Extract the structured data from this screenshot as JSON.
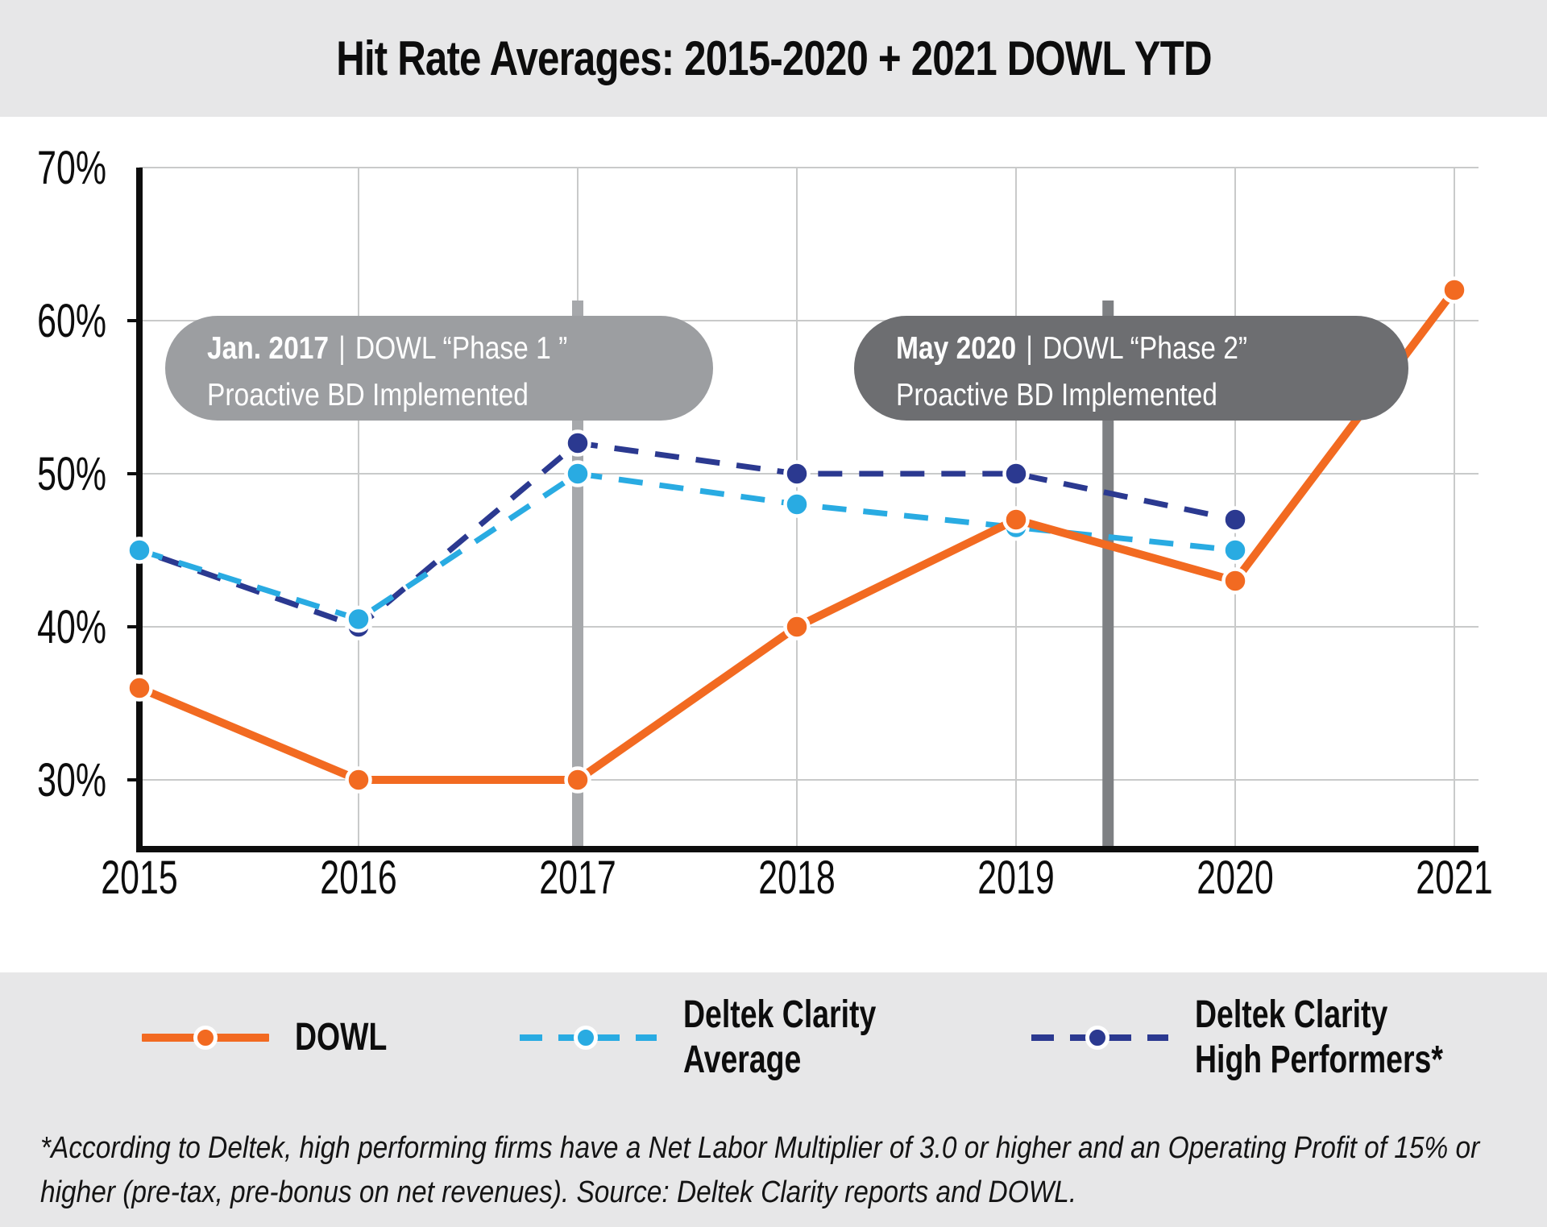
{
  "header": {
    "title": "Hit Rate Averages: 2015-2020 + 2021 DOWL YTD"
  },
  "chart_data": {
    "type": "line",
    "title": "Hit Rate Averages: 2015-2020 + 2021 DOWL YTD",
    "x_categories": [
      "2015",
      "2016",
      "2017",
      "2018",
      "2019",
      "2020",
      "2021"
    ],
    "y_ticks": {
      "values": [
        70,
        60,
        50,
        40,
        30
      ],
      "labels": [
        "70%",
        "60%",
        "50%",
        "40%",
        "30%"
      ]
    },
    "ylim": [
      25.8,
      70
    ],
    "unit": "%",
    "grid": true,
    "legend_position": "bottom",
    "series": [
      {
        "name": "DOWL",
        "color": "#F26A21",
        "line_style": "solid",
        "values": [
          36,
          30,
          30,
          40,
          47,
          43,
          62
        ]
      },
      {
        "name": "Deltek Clarity Average",
        "color": "#29ABE2",
        "line_style": "dashed",
        "values": [
          45,
          40.5,
          50,
          48,
          46.5,
          45,
          null
        ]
      },
      {
        "name": "Deltek Clarity High Performers*",
        "color": "#2B3990",
        "line_style": "dashed",
        "values": [
          45,
          40,
          52,
          50,
          50,
          47,
          null
        ]
      }
    ],
    "annotations": [
      {
        "date": "Jan. 2017",
        "divider": "|",
        "label": "DOWL “Phase 1 ”",
        "label2": "Proactive BD Implemented",
        "marker_year": 2017,
        "bubble_color": "#9C9EA1",
        "bar_color": "#A6A8AB"
      },
      {
        "date": "May 2020",
        "divider": "|",
        "label": "DOWL “Phase 2”",
        "label2": "Proactive BD Implemented",
        "marker_year": 2019.42,
        "bubble_color": "#6D6E71",
        "bar_color": "#7E8083"
      }
    ]
  },
  "legend": {
    "items": [
      {
        "label_line1": "DOWL",
        "label_line2": "",
        "color": "#F26A21",
        "style": "solid"
      },
      {
        "label_line1": "Deltek Clarity",
        "label_line2": "Average",
        "color": "#29ABE2",
        "style": "dashed"
      },
      {
        "label_line1": "Deltek Clarity",
        "label_line2": "High Performers*",
        "color": "#2B3990",
        "style": "dashed"
      }
    ]
  },
  "footnote": {
    "line1": "*According to Deltek, high performing firms have a Net Labor Multiplier of 3.0 or higher and an Operating Profit of 15% or",
    "line2": "higher (pre-tax, pre-bonus on net revenues). Source: Deltek Clarity reports and DOWL."
  },
  "colors": {
    "band_background": "#E7E7E8",
    "chart_background": "#FFFFFF",
    "gridline": "#C9CACA",
    "axis": "#0d0d0d",
    "text": "#141414"
  }
}
